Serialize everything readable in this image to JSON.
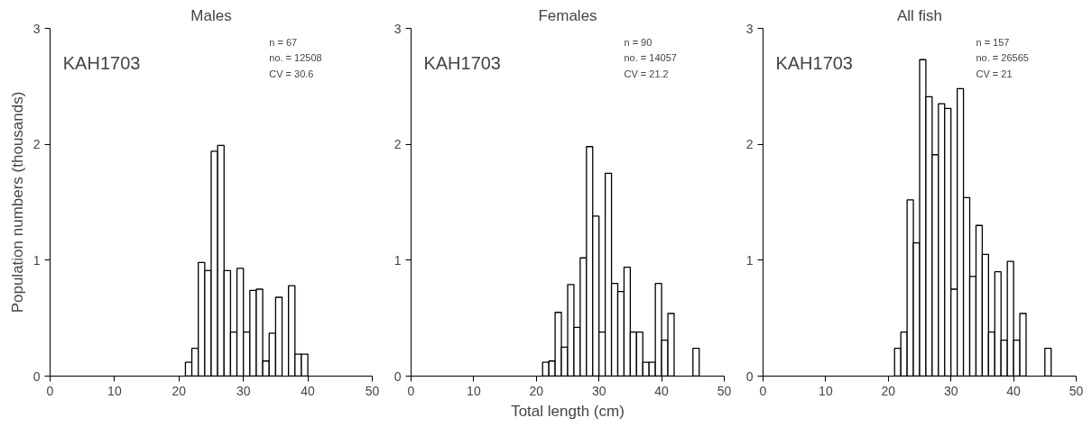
{
  "chart_data": [
    {
      "type": "histogram",
      "title": "Males",
      "ylabel": "Population numbers (thousands)",
      "color": "#ffffff",
      "bins": [
        21,
        22,
        23,
        24,
        25,
        26,
        27,
        28,
        29,
        30,
        31,
        32,
        33,
        34,
        35,
        36,
        37,
        38,
        39,
        40
      ],
      "values": [
        0.12,
        0.24,
        0.98,
        0.91,
        1.94,
        1.99,
        0.91,
        0.38,
        0.93,
        0.38,
        0.74,
        0.75,
        0.13,
        0.37,
        0.68,
        0,
        0.78,
        0.19,
        0.19
      ],
      "xlim": [
        0,
        50
      ],
      "ylim": [
        0,
        3
      ],
      "xticks": [
        0,
        10,
        20,
        30,
        40,
        50
      ],
      "yticks": [
        0,
        1,
        2,
        3
      ],
      "annotations": [
        "KAH1703",
        "n = 67",
        "no. = 12508",
        "CV = 30.6"
      ]
    },
    {
      "type": "histogram",
      "title": "Females",
      "xlabel": "Total length (cm)",
      "color": "#ffffff",
      "bins": [
        21,
        22,
        23,
        24,
        25,
        26,
        27,
        28,
        29,
        30,
        31,
        32,
        33,
        34,
        35,
        36,
        37,
        38,
        39,
        40,
        41,
        42,
        43,
        44,
        45,
        46
      ],
      "values": [
        0.12,
        0.13,
        0.55,
        0.25,
        0.79,
        0.42,
        1.02,
        1.98,
        1.38,
        0.38,
        1.75,
        0.8,
        0.73,
        0.94,
        0.38,
        0.38,
        0.12,
        0.12,
        0.8,
        0.31,
        0.54,
        0,
        0,
        0,
        0.24
      ],
      "xlim": [
        0,
        50
      ],
      "ylim": [
        0,
        3
      ],
      "xticks": [
        0,
        10,
        20,
        30,
        40,
        50
      ],
      "yticks": [
        0,
        1,
        2,
        3
      ],
      "annotations": [
        "KAH1703",
        "n = 90",
        "no. = 14057",
        "CV = 21.2"
      ]
    },
    {
      "type": "histogram",
      "title": "All fish",
      "color": "#ffffff",
      "bins": [
        21,
        22,
        23,
        24,
        25,
        26,
        27,
        28,
        29,
        30,
        31,
        32,
        33,
        34,
        35,
        36,
        37,
        38,
        39,
        40,
        41,
        42,
        43,
        44,
        45,
        46
      ],
      "values": [
        0.24,
        0.38,
        1.52,
        1.15,
        2.73,
        2.41,
        1.91,
        2.35,
        2.31,
        0.75,
        2.48,
        1.54,
        0.86,
        1.3,
        1.05,
        0.38,
        0.9,
        0.31,
        0.99,
        0.31,
        0.54,
        0,
        0,
        0,
        0.24
      ],
      "xlim": [
        0,
        50
      ],
      "ylim": [
        0,
        3
      ],
      "xticks": [
        0,
        10,
        20,
        30,
        40,
        50
      ],
      "yticks": [
        0,
        1,
        2,
        3
      ],
      "annotations": [
        "KAH1703",
        "n = 157",
        "no. = 26565",
        "CV = 21"
      ]
    }
  ]
}
